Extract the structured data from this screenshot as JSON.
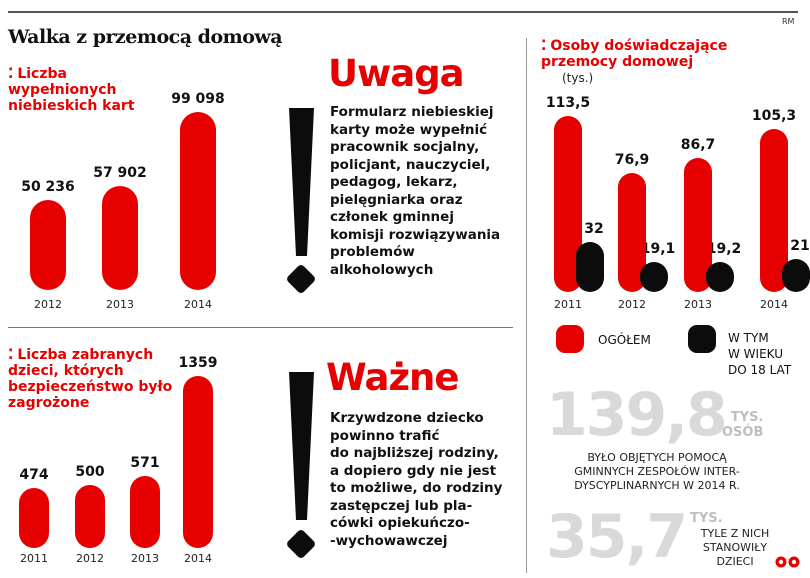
{
  "header": {
    "title": "Walka z przemocą domową",
    "credit": "RM"
  },
  "chart_data": [
    {
      "type": "bar",
      "title": "Liczba wypełnionych niebieskich kart",
      "categories": [
        "2012",
        "2013",
        "2014"
      ],
      "values": [
        50236,
        57902,
        99098
      ],
      "value_labels": [
        "50 236",
        "57 902",
        "99 098"
      ],
      "ylim": [
        0,
        99098
      ]
    },
    {
      "type": "bar",
      "title": "Liczba zabranych dzieci, których bezpieczeństwo było zagrożone",
      "categories": [
        "2011",
        "2012",
        "2013",
        "2014"
      ],
      "values": [
        474,
        500,
        571,
        1359
      ],
      "value_labels": [
        "474",
        "500",
        "571",
        "1359"
      ],
      "ylim": [
        0,
        1359
      ]
    },
    {
      "type": "bar",
      "title": "Osoby doświadczające przemocy domowej",
      "subtitle": "(tys.)",
      "categories": [
        "2011",
        "2012",
        "2013",
        "2014"
      ],
      "series": [
        {
          "name": "OGÓŁEM",
          "values": [
            113.5,
            76.9,
            86.7,
            105.3
          ],
          "labels": [
            "113,5",
            "76,9",
            "86,7",
            "105,3"
          ],
          "color": "#e60000"
        },
        {
          "name": "W TYM W WIEKU DO 18 LAT",
          "values": [
            32,
            19.1,
            19.2,
            21
          ],
          "labels": [
            "32",
            "19,1",
            "19,2",
            "21"
          ],
          "color": "#0c0c0c"
        }
      ],
      "ylim": [
        0,
        113.5
      ]
    }
  ],
  "notices": {
    "uwaga": {
      "heading": "Uwaga",
      "lines": [
        "Formularz niebieskiej",
        "karty może wypełnić",
        "pracownik socjalny,",
        "policjant, nauczyciel,",
        "pedagog, lekarz,",
        "pielęgniarka oraz",
        "członek gminnej",
        "komisji rozwiązywania",
        "problemów",
        "alkoholowych"
      ]
    },
    "wazne": {
      "heading": "Ważne",
      "lines": [
        "Krzywdzone dziecko",
        "powinno trafić",
        "do najbliższej rodziny,",
        "a dopiero gdy nie jest",
        "to możliwe, do rodziny",
        "zastępczej lub pla-",
        "cówki opiekuńczo-",
        "-wychowawczej"
      ]
    }
  },
  "legend": {
    "total": "OGÓŁEM",
    "youth_lines": [
      "W TYM",
      "W WIEKU",
      "DO 18 LAT"
    ]
  },
  "stats": {
    "helped": {
      "value": "139,8",
      "unit_lines": [
        "TYS.",
        "OSÓB"
      ],
      "caption_lines": [
        "BYŁO OBJĘTYCH POMOCĄ",
        "GMINNYCH ZESPOŁÓW INTER-",
        "DYSCYPLINARNYCH W 2014 R."
      ]
    },
    "children": {
      "value": "35,7",
      "unit_lines": [
        "TYS."
      ],
      "caption_lines": [
        "TYLE Z NICH",
        "STANOWIŁY",
        "DZIECI"
      ]
    }
  },
  "colors": {
    "red": "#e60000",
    "black": "#0c0c0c",
    "grey": "#d9d9d9"
  }
}
